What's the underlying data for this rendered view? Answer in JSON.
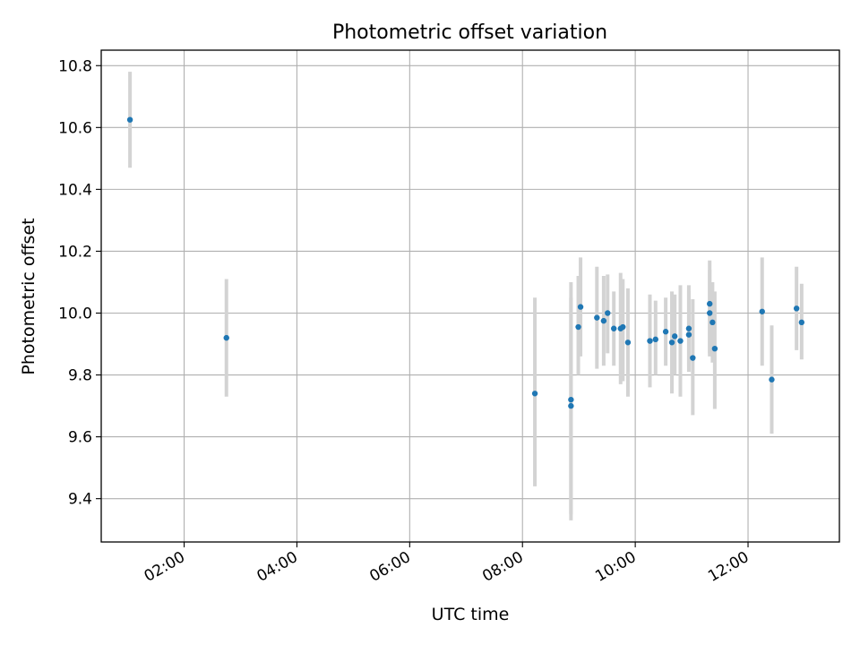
{
  "chart_data": {
    "type": "scatter",
    "title": "Photometric offset variation",
    "xlabel": "UTC time",
    "ylabel": "Photometric offset",
    "x_unit": "hours UTC",
    "xlim": [
      0.53,
      13.62
    ],
    "ylim": [
      9.26,
      10.85
    ],
    "x_ticks": [
      {
        "value": 2,
        "label": "02:00"
      },
      {
        "value": 4,
        "label": "04:00"
      },
      {
        "value": 6,
        "label": "06:00"
      },
      {
        "value": 8,
        "label": "08:00"
      },
      {
        "value": 10,
        "label": "10:00"
      },
      {
        "value": 12,
        "label": "12:00"
      }
    ],
    "y_ticks": [
      {
        "value": 9.4,
        "label": "9.4"
      },
      {
        "value": 9.6,
        "label": "9.6"
      },
      {
        "value": 9.8,
        "label": "9.8"
      },
      {
        "value": 10.0,
        "label": "10.0"
      },
      {
        "value": 10.2,
        "label": "10.2"
      },
      {
        "value": 10.4,
        "label": "10.4"
      },
      {
        "value": 10.6,
        "label": "10.6"
      },
      {
        "value": 10.8,
        "label": "10.8"
      }
    ],
    "grid": true,
    "marker_color": "#1f77b4",
    "errorbar_color": "#d3d3d3",
    "points": [
      {
        "x": 1.04,
        "y": 10.625,
        "err_low": 10.47,
        "err_high": 10.78
      },
      {
        "x": 2.75,
        "y": 9.92,
        "err_low": 9.73,
        "err_high": 10.11
      },
      {
        "x": 8.22,
        "y": 9.74,
        "err_low": 9.44,
        "err_high": 10.05
      },
      {
        "x": 8.86,
        "y": 9.72,
        "err_low": 9.33,
        "err_high": 10.1
      },
      {
        "x": 8.86,
        "y": 9.7,
        "err_low": 9.35,
        "err_high": 10.05
      },
      {
        "x": 8.99,
        "y": 9.955,
        "err_low": 9.8,
        "err_high": 10.12
      },
      {
        "x": 9.03,
        "y": 10.02,
        "err_low": 9.86,
        "err_high": 10.18
      },
      {
        "x": 9.32,
        "y": 9.985,
        "err_low": 9.82,
        "err_high": 10.15
      },
      {
        "x": 9.44,
        "y": 9.975,
        "err_low": 9.83,
        "err_high": 10.12
      },
      {
        "x": 9.51,
        "y": 10.0,
        "err_low": 9.87,
        "err_high": 10.125
      },
      {
        "x": 9.62,
        "y": 9.95,
        "err_low": 9.83,
        "err_high": 10.07
      },
      {
        "x": 9.74,
        "y": 9.95,
        "err_low": 9.77,
        "err_high": 10.13
      },
      {
        "x": 9.78,
        "y": 9.955,
        "err_low": 9.78,
        "err_high": 10.11
      },
      {
        "x": 9.87,
        "y": 9.905,
        "err_low": 9.73,
        "err_high": 10.08
      },
      {
        "x": 10.26,
        "y": 9.91,
        "err_low": 9.76,
        "err_high": 10.06
      },
      {
        "x": 10.36,
        "y": 9.915,
        "err_low": 9.8,
        "err_high": 10.04
      },
      {
        "x": 10.54,
        "y": 9.94,
        "err_low": 9.83,
        "err_high": 10.05
      },
      {
        "x": 10.65,
        "y": 9.905,
        "err_low": 9.74,
        "err_high": 10.07
      },
      {
        "x": 10.7,
        "y": 9.925,
        "err_low": 9.8,
        "err_high": 10.06
      },
      {
        "x": 10.8,
        "y": 9.91,
        "err_low": 9.73,
        "err_high": 10.09
      },
      {
        "x": 10.95,
        "y": 9.95,
        "err_low": 9.83,
        "err_high": 10.09
      },
      {
        "x": 10.95,
        "y": 9.93,
        "err_low": 9.81,
        "err_high": 10.07
      },
      {
        "x": 11.02,
        "y": 9.855,
        "err_low": 9.67,
        "err_high": 10.045
      },
      {
        "x": 11.32,
        "y": 10.03,
        "err_low": 9.86,
        "err_high": 10.17
      },
      {
        "x": 11.32,
        "y": 10.0,
        "err_low": 9.87,
        "err_high": 10.14
      },
      {
        "x": 11.37,
        "y": 9.97,
        "err_low": 9.84,
        "err_high": 10.1
      },
      {
        "x": 11.41,
        "y": 9.885,
        "err_low": 9.69,
        "err_high": 10.07
      },
      {
        "x": 12.25,
        "y": 10.005,
        "err_low": 9.83,
        "err_high": 10.18
      },
      {
        "x": 12.42,
        "y": 9.785,
        "err_low": 9.61,
        "err_high": 9.96
      },
      {
        "x": 12.86,
        "y": 10.015,
        "err_low": 9.88,
        "err_high": 10.15
      },
      {
        "x": 12.95,
        "y": 9.97,
        "err_low": 9.85,
        "err_high": 10.095
      }
    ]
  }
}
